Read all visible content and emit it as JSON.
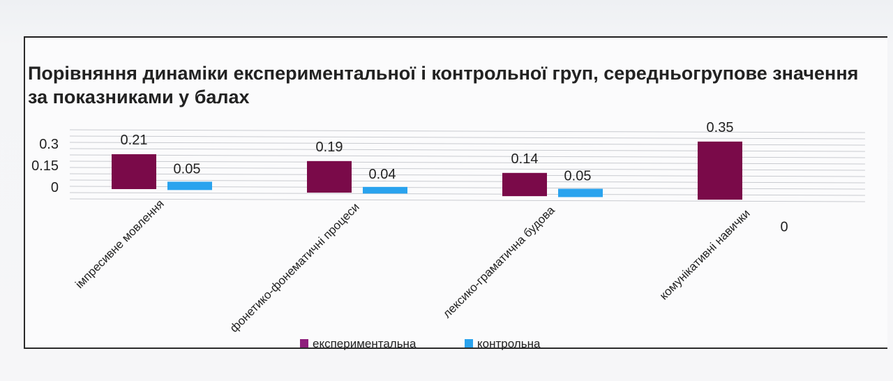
{
  "colors": {
    "experimental": "#7a0a49",
    "control": "#2aa3ee",
    "experimental_legend": "#8e1f7c"
  },
  "chart_data": {
    "type": "bar",
    "title": "Порівняння динаміки експериментальної і контрольної груп, середньогрупове значення за показниками у балах",
    "categories": [
      "імпресивне мовлення",
      "фонетико-фонематичні процеси",
      "лексико-граматична будова",
      "комунікативні навички"
    ],
    "series": [
      {
        "name": "експериментальна",
        "values": [
          0.21,
          0.19,
          0.14,
          0.35
        ]
      },
      {
        "name": "контрольна",
        "values": [
          0.05,
          0.04,
          0.05,
          0
        ]
      }
    ],
    "data_labels": {
      "experimental": [
        "0.21",
        "0.19",
        "0.14",
        "0.35"
      ],
      "control": [
        "0.05",
        "0.04",
        "0.05",
        "0"
      ]
    },
    "yticks": [
      "0.3",
      "0.15",
      "0"
    ],
    "ylim": [
      0,
      0.35
    ],
    "legend_position": "bottom",
    "grid": true
  }
}
